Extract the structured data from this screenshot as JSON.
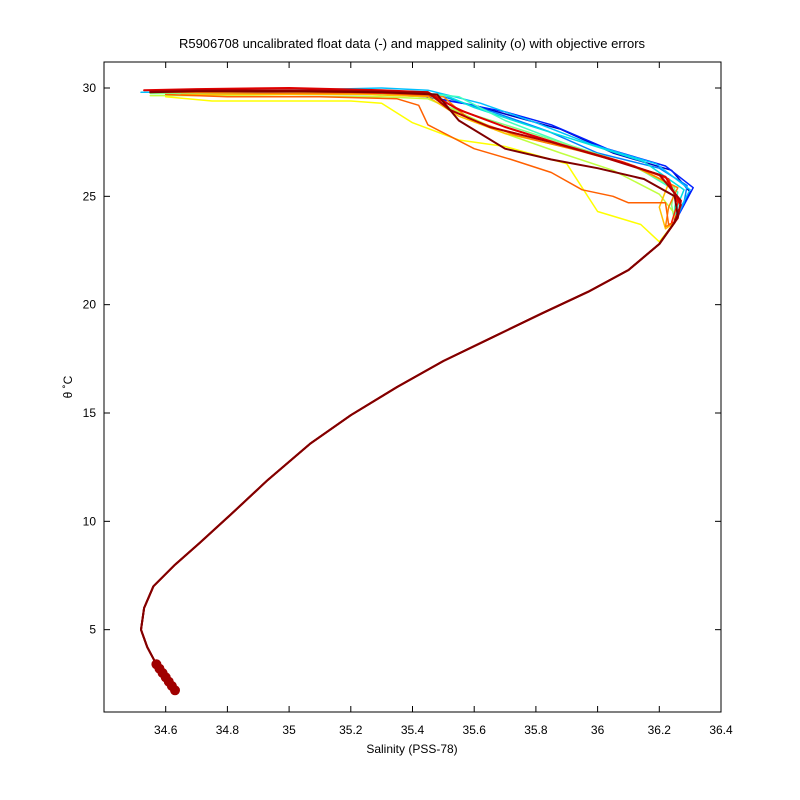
{
  "chart_data": {
    "type": "line",
    "title": "R5906708 uncalibrated float data (-) and mapped salinity (o) with objective errors",
    "xlabel": "Salinity (PSS-78)",
    "ylabel": "θ ˚C",
    "xlim": [
      34.4,
      36.4
    ],
    "ylim": [
      1.2,
      31.2
    ],
    "xticks": [
      "34.6",
      "34.8",
      "35",
      "35.2",
      "35.4",
      "35.6",
      "35.8",
      "36",
      "36.2",
      "36.4"
    ],
    "xtick_values": [
      34.6,
      34.8,
      35.0,
      35.2,
      35.4,
      35.6,
      35.8,
      36.0,
      36.2,
      36.4
    ],
    "yticks": [
      "5",
      "10",
      "15",
      "20",
      "25",
      "30"
    ],
    "ytick_values": [
      5,
      10,
      15,
      20,
      25,
      30
    ],
    "grid": false,
    "box": true,
    "colormap": "jet",
    "common_deep_profile": [
      [
        34.63,
        2.2
      ],
      [
        34.6,
        2.8
      ],
      [
        34.57,
        3.4
      ],
      [
        34.54,
        4.2
      ],
      [
        34.52,
        5.0
      ],
      [
        34.53,
        6.0
      ],
      [
        34.56,
        7.0
      ],
      [
        34.63,
        8.0
      ],
      [
        34.71,
        9.0
      ],
      [
        34.81,
        10.3
      ],
      [
        34.93,
        11.9
      ],
      [
        35.07,
        13.6
      ],
      [
        35.2,
        14.9
      ],
      [
        35.35,
        16.2
      ],
      [
        35.5,
        17.4
      ],
      [
        35.66,
        18.5
      ],
      [
        35.82,
        19.6
      ],
      [
        35.97,
        20.6
      ],
      [
        36.1,
        21.6
      ],
      [
        36.2,
        22.8
      ],
      [
        36.25,
        23.8
      ]
    ],
    "series": [
      {
        "color": "#0000bb",
        "points": [
          [
            36.27,
            24.5
          ],
          [
            36.3,
            25.2
          ],
          [
            36.24,
            26.2
          ],
          [
            36.05,
            27.0
          ],
          [
            35.88,
            28.1
          ],
          [
            35.75,
            28.6
          ],
          [
            35.6,
            29.2
          ],
          [
            35.45,
            29.6
          ],
          [
            35.3,
            29.7
          ],
          [
            35.0,
            29.8
          ],
          [
            34.7,
            29.8
          ],
          [
            34.55,
            29.8
          ]
        ]
      },
      {
        "color": "#0020ff",
        "points": [
          [
            36.28,
            24.6
          ],
          [
            36.31,
            25.4
          ],
          [
            36.22,
            26.4
          ],
          [
            36.03,
            27.2
          ],
          [
            35.85,
            28.3
          ],
          [
            35.7,
            28.9
          ],
          [
            35.56,
            29.3
          ],
          [
            35.4,
            29.7
          ],
          [
            35.2,
            29.7
          ],
          [
            34.9,
            29.75
          ],
          [
            34.6,
            29.8
          ]
        ]
      },
      {
        "color": "#0080ff",
        "points": [
          [
            36.28,
            24.7
          ],
          [
            36.29,
            25.5
          ],
          [
            36.2,
            26.3
          ],
          [
            36.0,
            27.0
          ],
          [
            35.84,
            28.0
          ],
          [
            35.66,
            28.9
          ],
          [
            35.5,
            29.6
          ],
          [
            35.35,
            29.8
          ],
          [
            35.1,
            29.85
          ],
          [
            34.8,
            29.85
          ],
          [
            34.55,
            29.85
          ]
        ]
      },
      {
        "color": "#00c0ff",
        "points": [
          [
            36.27,
            24.5
          ],
          [
            36.3,
            25.3
          ],
          [
            36.19,
            26.5
          ],
          [
            35.98,
            27.4
          ],
          [
            35.8,
            28.4
          ],
          [
            35.62,
            29.3
          ],
          [
            35.45,
            29.9
          ],
          [
            35.3,
            30.0
          ],
          [
            35.0,
            29.9
          ],
          [
            34.7,
            29.8
          ],
          [
            34.52,
            29.8
          ]
        ]
      },
      {
        "color": "#00e0e0",
        "points": [
          [
            36.26,
            24.6
          ],
          [
            36.28,
            25.3
          ],
          [
            36.15,
            26.6
          ],
          [
            35.95,
            27.5
          ],
          [
            35.77,
            28.3
          ],
          [
            35.6,
            29.1
          ],
          [
            35.5,
            29.7
          ],
          [
            35.35,
            29.8
          ],
          [
            35.1,
            29.75
          ],
          [
            34.8,
            29.75
          ],
          [
            34.55,
            29.8
          ]
        ]
      },
      {
        "color": "#40ffc0",
        "points": [
          [
            36.25,
            24.5
          ],
          [
            36.26,
            25.2
          ],
          [
            36.12,
            26.4
          ],
          [
            35.92,
            27.3
          ],
          [
            35.7,
            28.5
          ],
          [
            35.55,
            29.6
          ],
          [
            35.48,
            29.7
          ],
          [
            35.3,
            29.7
          ],
          [
            35.05,
            29.7
          ],
          [
            34.8,
            29.75
          ],
          [
            34.55,
            29.75
          ]
        ]
      },
      {
        "color": "#80ff80",
        "points": [
          [
            36.24,
            24.6
          ],
          [
            36.25,
            25.4
          ],
          [
            36.1,
            26.5
          ],
          [
            35.9,
            27.4
          ],
          [
            35.7,
            28.3
          ],
          [
            35.52,
            29.1
          ],
          [
            35.45,
            29.7
          ],
          [
            35.25,
            29.8
          ],
          [
            35.0,
            29.75
          ],
          [
            34.7,
            29.75
          ],
          [
            34.55,
            29.75
          ]
        ]
      },
      {
        "color": "#c0ff40",
        "points": [
          [
            36.25,
            24.2
          ],
          [
            36.2,
            25.1
          ],
          [
            36.05,
            26.2
          ],
          [
            35.88,
            27.0
          ],
          [
            35.7,
            27.9
          ],
          [
            35.55,
            28.9
          ],
          [
            35.45,
            29.5
          ],
          [
            35.3,
            29.6
          ],
          [
            35.0,
            29.6
          ],
          [
            34.7,
            29.65
          ],
          [
            34.55,
            29.65
          ]
        ]
      },
      {
        "color": "#ffff00",
        "points": [
          [
            36.2,
            22.9
          ],
          [
            36.14,
            23.7
          ],
          [
            36.0,
            24.3
          ],
          [
            35.9,
            26.5
          ],
          [
            35.7,
            27.3
          ],
          [
            35.55,
            27.6
          ],
          [
            35.4,
            28.4
          ],
          [
            35.3,
            29.3
          ],
          [
            35.2,
            29.4
          ],
          [
            35.0,
            29.4
          ],
          [
            34.75,
            29.4
          ],
          [
            34.6,
            29.6
          ]
        ]
      },
      {
        "color": "#ffc000",
        "points": [
          [
            36.22,
            23.5
          ],
          [
            36.2,
            24.5
          ],
          [
            36.23,
            25.6
          ],
          [
            36.1,
            26.5
          ],
          [
            35.92,
            27.2
          ],
          [
            35.7,
            27.9
          ],
          [
            35.55,
            28.7
          ],
          [
            35.45,
            29.6
          ],
          [
            35.25,
            29.7
          ],
          [
            34.95,
            29.7
          ],
          [
            34.65,
            29.7
          ]
        ]
      },
      {
        "color": "#ff8000",
        "points": [
          [
            36.22,
            23.6
          ],
          [
            36.23,
            24.5
          ],
          [
            36.26,
            25.4
          ],
          [
            36.12,
            26.4
          ],
          [
            35.94,
            27.1
          ],
          [
            35.74,
            27.8
          ],
          [
            35.58,
            28.6
          ],
          [
            35.5,
            29.6
          ],
          [
            35.3,
            29.75
          ],
          [
            35.0,
            29.75
          ],
          [
            34.6,
            29.8
          ]
        ]
      },
      {
        "color": "#ff6000",
        "points": [
          [
            36.23,
            23.7
          ],
          [
            36.22,
            24.7
          ],
          [
            36.1,
            24.7
          ],
          [
            36.05,
            25.0
          ],
          [
            35.95,
            25.3
          ],
          [
            35.85,
            26.1
          ],
          [
            35.72,
            26.7
          ],
          [
            35.6,
            27.2
          ],
          [
            35.45,
            28.3
          ],
          [
            35.42,
            29.2
          ],
          [
            35.35,
            29.5
          ],
          [
            35.1,
            29.6
          ],
          [
            34.8,
            29.6
          ],
          [
            34.6,
            29.7
          ]
        ]
      },
      {
        "color": "#ff2000",
        "points": [
          [
            36.24,
            23.8
          ],
          [
            36.26,
            24.7
          ],
          [
            36.23,
            25.8
          ],
          [
            36.08,
            26.6
          ],
          [
            35.9,
            27.3
          ],
          [
            35.72,
            28.1
          ],
          [
            35.57,
            28.9
          ],
          [
            35.45,
            29.7
          ],
          [
            35.2,
            29.8
          ],
          [
            34.9,
            29.85
          ],
          [
            34.55,
            29.85
          ]
        ]
      },
      {
        "color": "#e00000",
        "points": [
          [
            36.25,
            23.9
          ],
          [
            36.27,
            24.6
          ],
          [
            36.22,
            25.9
          ],
          [
            36.05,
            26.7
          ],
          [
            35.88,
            27.4
          ],
          [
            35.7,
            28.2
          ],
          [
            35.55,
            29.0
          ],
          [
            35.45,
            29.8
          ],
          [
            35.3,
            29.9
          ],
          [
            35.0,
            30.0
          ],
          [
            34.7,
            29.95
          ],
          [
            34.53,
            29.9
          ]
        ]
      },
      {
        "color": "#b00000",
        "points": [
          [
            36.26,
            24.0
          ],
          [
            36.27,
            24.8
          ],
          [
            36.2,
            26.0
          ],
          [
            36.02,
            26.8
          ],
          [
            35.85,
            27.5
          ],
          [
            35.65,
            28.2
          ],
          [
            35.52,
            29.0
          ],
          [
            35.45,
            29.8
          ],
          [
            35.3,
            29.85
          ],
          [
            35.0,
            29.9
          ],
          [
            34.7,
            29.9
          ],
          [
            34.55,
            29.85
          ]
        ]
      },
      {
        "color": "#800000",
        "points": [
          [
            36.26,
            24.1
          ],
          [
            36.25,
            25.0
          ],
          [
            36.15,
            25.8
          ],
          [
            36.0,
            26.3
          ],
          [
            35.85,
            26.7
          ],
          [
            35.7,
            27.2
          ],
          [
            35.55,
            28.5
          ],
          [
            35.48,
            29.7
          ],
          [
            35.3,
            29.8
          ],
          [
            35.0,
            29.85
          ],
          [
            34.7,
            29.85
          ],
          [
            34.55,
            29.8
          ]
        ]
      }
    ],
    "markers": {
      "color": "#a00000",
      "points": [
        [
          34.57,
          3.4
        ],
        [
          34.58,
          3.2
        ],
        [
          34.59,
          3.0
        ],
        [
          34.6,
          2.8
        ],
        [
          34.61,
          2.6
        ],
        [
          34.62,
          2.4
        ],
        [
          34.63,
          2.2
        ]
      ]
    }
  }
}
